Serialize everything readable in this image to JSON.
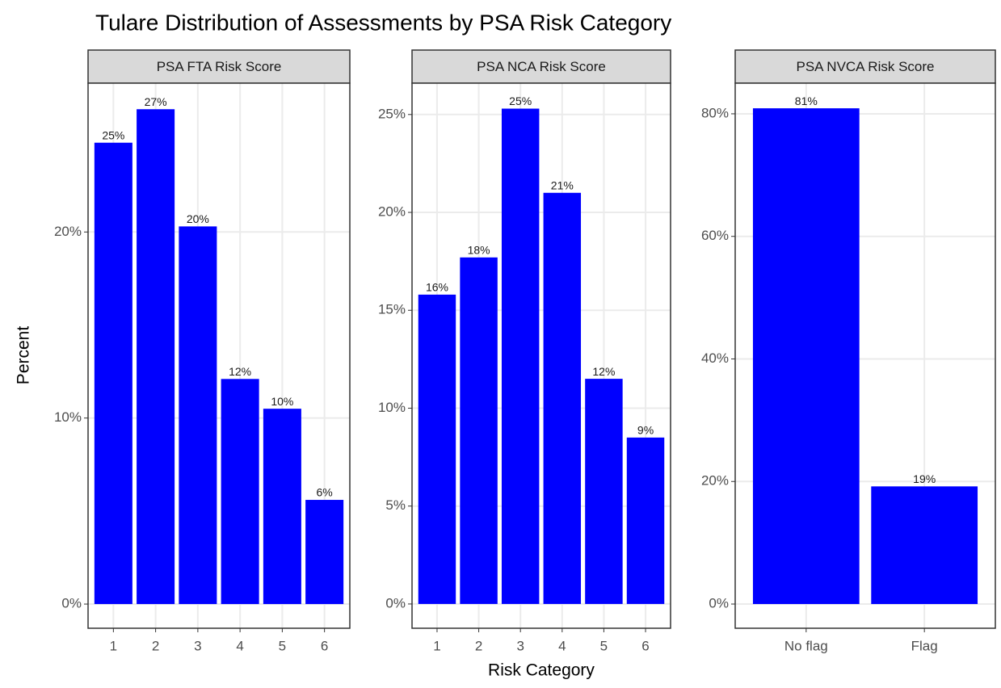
{
  "title": "Tulare Distribution of Assessments by PSA Risk Category",
  "xlabel": "Risk Category",
  "ylabel": "Percent",
  "chart_data": [
    {
      "type": "bar",
      "title": "PSA FTA Risk Score",
      "color": "#0000ff",
      "grid": true,
      "categories": [
        "1",
        "2",
        "3",
        "4",
        "5",
        "6"
      ],
      "values": [
        24.8,
        26.6,
        20.3,
        12.1,
        10.5,
        5.6
      ],
      "value_labels": [
        "25%",
        "27%",
        "20%",
        "12%",
        "10%",
        "6%"
      ],
      "ylim": [
        -1.3,
        28.0
      ],
      "yticks": [
        {
          "value": 0,
          "label": "0%"
        },
        {
          "value": 10,
          "label": "10%"
        },
        {
          "value": 20,
          "label": "20%"
        }
      ]
    },
    {
      "type": "bar",
      "title": "PSA NCA Risk Score",
      "color": "#0000ff",
      "grid": true,
      "categories": [
        "1",
        "2",
        "3",
        "4",
        "5",
        "6"
      ],
      "values": [
        15.8,
        17.7,
        25.3,
        21.0,
        11.5,
        8.5
      ],
      "value_labels": [
        "16%",
        "18%",
        "25%",
        "21%",
        "12%",
        "9%"
      ],
      "ylim": [
        -1.24,
        26.6
      ],
      "yticks": [
        {
          "value": 0,
          "label": "0%"
        },
        {
          "value": 5,
          "label": "5%"
        },
        {
          "value": 10,
          "label": "10%"
        },
        {
          "value": 15,
          "label": "15%"
        },
        {
          "value": 20,
          "label": "20%"
        },
        {
          "value": 25,
          "label": "25%"
        }
      ]
    },
    {
      "type": "bar",
      "title": "PSA NVCA Risk Score",
      "color": "#0000ff",
      "grid": true,
      "categories": [
        "No flag",
        "Flag"
      ],
      "values": [
        80.9,
        19.2
      ],
      "value_labels": [
        "81%",
        "19%"
      ],
      "ylim": [
        -3.95,
        85.0
      ],
      "yticks": [
        {
          "value": 0,
          "label": "0%"
        },
        {
          "value": 20,
          "label": "20%"
        },
        {
          "value": 40,
          "label": "40%"
        },
        {
          "value": 60,
          "label": "60%"
        },
        {
          "value": 80,
          "label": "80%"
        }
      ]
    }
  ]
}
